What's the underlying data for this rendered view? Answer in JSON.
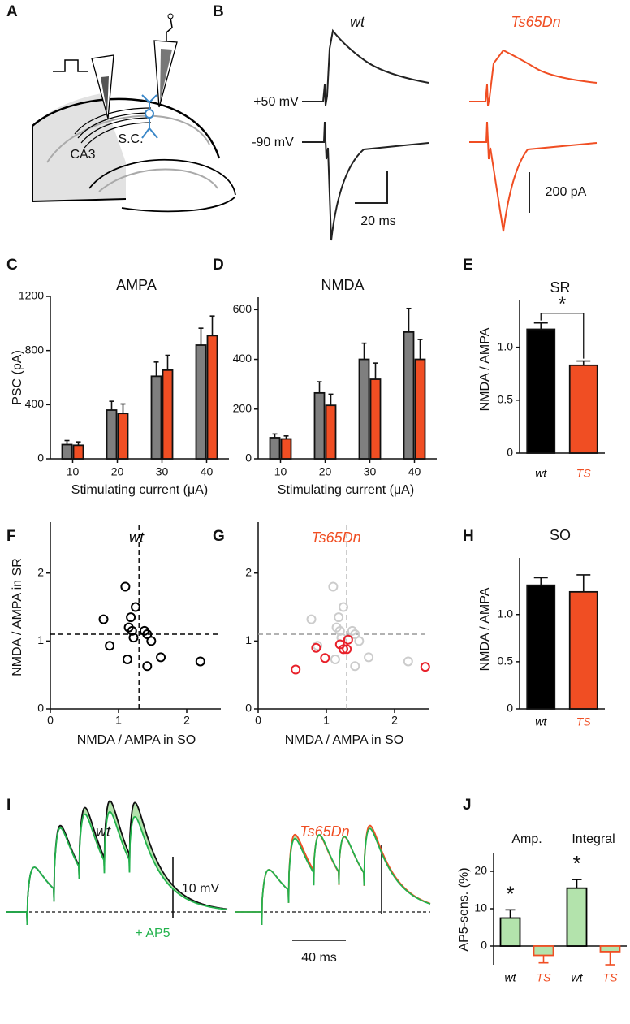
{
  "panel_a": {
    "label": "A",
    "sc": "S.C.",
    "ca3": "CA3"
  },
  "panel_b": {
    "label": "B",
    "wt": "wt",
    "ts": "Ts65Dn",
    "pos": "+50 mV",
    "neg": "-90 mV",
    "time_scale": "20 ms",
    "current_scale": "200 pA"
  },
  "panel_i": {
    "label": "I",
    "wt": "wt",
    "ts": "Ts65Dn",
    "voltage_scale": "10 mV",
    "drug": "+ AP5",
    "time_scale": "40 ms"
  },
  "chart_data": [
    {
      "panel": "C",
      "type": "bar",
      "title": "AMPA",
      "ylabel": "PSC (pA)",
      "xlabel": "Stimulating current (μA)",
      "categories": [
        "10",
        "20",
        "30",
        "40"
      ],
      "ylim": [
        0,
        1200
      ],
      "yticks": [
        0,
        400,
        800,
        1200
      ],
      "series": [
        {
          "color": "#7f7f7f",
          "values": [
            105,
            360,
            610,
            840
          ],
          "errors": [
            30,
            65,
            105,
            125
          ]
        },
        {
          "color": "#f04e23",
          "values": [
            100,
            335,
            655,
            910
          ],
          "errors": [
            25,
            70,
            110,
            145
          ]
        }
      ]
    },
    {
      "panel": "D",
      "type": "bar",
      "title": "NMDA",
      "xlabel": "Stimulating current (μA)",
      "categories": [
        "10",
        "20",
        "30",
        "40"
      ],
      "ylim": [
        0,
        650
      ],
      "yticks": [
        0,
        200,
        400,
        600
      ],
      "series": [
        {
          "color": "#7f7f7f",
          "values": [
            85,
            265,
            400,
            510
          ],
          "errors": [
            15,
            45,
            65,
            95
          ]
        },
        {
          "color": "#f04e23",
          "values": [
            80,
            215,
            320,
            400
          ],
          "errors": [
            12,
            45,
            65,
            80
          ]
        }
      ]
    },
    {
      "panel": "E",
      "type": "bar",
      "title": "SR",
      "ylabel": "NMDA / AMPA",
      "categories": [
        "wt",
        "TS"
      ],
      "category_colors": [
        "#000000",
        "#f04e23"
      ],
      "values": [
        1.17,
        0.83
      ],
      "errors": [
        0.06,
        0.04
      ],
      "colors": [
        "#000000",
        "#f04e23"
      ],
      "ylim": [
        0,
        1.45
      ],
      "yticks": [
        0,
        0.5,
        {
          "value": 1,
          "label": "1.0"
        }
      ],
      "significance": "*"
    },
    {
      "panel": "F",
      "type": "scatter",
      "title": "wt",
      "title_color": "#000000",
      "xlabel": "NMDA / AMPA in SO",
      "ylabel": "NMDA / AMPA in SR",
      "xlim": [
        0,
        2.5
      ],
      "ylim": [
        0,
        2.75
      ],
      "xticks": [
        0,
        1,
        2
      ],
      "yticks": [
        0,
        1,
        2
      ],
      "ref_x": 1.3,
      "ref_y": 1.1,
      "ref_color": "#000000",
      "series": [
        {
          "color": "#000000",
          "x": [
            0.78,
            0.87,
            1.1,
            1.15,
            1.18,
            1.2,
            1.22,
            1.25,
            1.13,
            1.38,
            1.42,
            1.48,
            1.42,
            1.62,
            2.2
          ],
          "y": [
            1.32,
            0.93,
            1.8,
            1.2,
            1.35,
            1.15,
            1.05,
            1.5,
            0.73,
            1.15,
            1.1,
            1.0,
            0.63,
            0.76,
            0.7
          ]
        }
      ]
    },
    {
      "panel": "G",
      "type": "scatter",
      "title": "Ts65Dn",
      "title_color": "#f04e23",
      "xlabel": "NMDA / AMPA in SO",
      "xlim": [
        0,
        2.5
      ],
      "ylim": [
        0,
        2.75
      ],
      "xticks": [
        0,
        1,
        2
      ],
      "yticks": [
        0,
        1,
        2
      ],
      "ref_x": 1.3,
      "ref_y": 1.1,
      "ref_color": "#999999",
      "series": [
        {
          "color": "#cccccc",
          "x": [
            0.78,
            0.87,
            1.1,
            1.15,
            1.18,
            1.2,
            1.22,
            1.25,
            1.13,
            1.38,
            1.42,
            1.48,
            1.42,
            1.62,
            2.2
          ],
          "y": [
            1.32,
            0.93,
            1.8,
            1.2,
            1.35,
            1.15,
            1.05,
            1.5,
            0.73,
            1.15,
            1.1,
            1.0,
            0.63,
            0.76,
            0.7
          ]
        },
        {
          "color": "#e8202a",
          "x": [
            0.55,
            0.85,
            0.98,
            1.2,
            1.25,
            1.3,
            1.32,
            2.45
          ],
          "y": [
            0.58,
            0.9,
            0.75,
            0.95,
            0.88,
            0.88,
            1.02,
            0.62
          ]
        }
      ]
    },
    {
      "panel": "H",
      "type": "bar",
      "title": "SO",
      "ylabel": "NMDA / AMPA",
      "categories": [
        "wt",
        "TS"
      ],
      "category_colors": [
        "#000000",
        "#f04e23"
      ],
      "values": [
        1.31,
        1.24
      ],
      "errors": [
        0.08,
        0.18
      ],
      "colors": [
        "#000000",
        "#f04e23"
      ],
      "ylim": [
        0,
        1.6
      ],
      "yticks": [
        0,
        0.5,
        {
          "value": 1,
          "label": "1.0"
        }
      ]
    },
    {
      "panel": "J",
      "type": "bar",
      "ylabel": "AP5-sens. (%)",
      "groups": [
        "Amp.",
        "Integral"
      ],
      "categories": [
        "wt",
        "TS",
        "wt",
        "TS"
      ],
      "category_colors": [
        "#000000",
        "#f04e23",
        "#000000",
        "#f04e23"
      ],
      "values": [
        7.5,
        -2.5,
        15.5,
        -1.5
      ],
      "errors": [
        2.2,
        2,
        2.3,
        3.5
      ],
      "colors": [
        "#b3e3ac",
        "#b3e3ac",
        "#b3e3ac",
        "#b3e3ac"
      ],
      "edge_colors": [
        "#000000",
        "#f04e23",
        "#000000",
        "#f04e23"
      ],
      "annotations": [
        "*",
        null,
        "*",
        null
      ],
      "ylim": [
        -5,
        25
      ],
      "yticks": [
        0,
        10,
        20
      ]
    }
  ]
}
